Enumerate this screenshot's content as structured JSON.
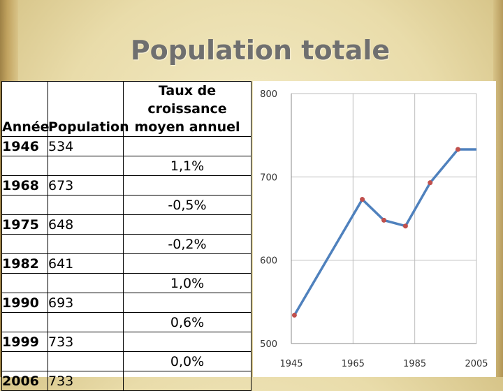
{
  "title": "Population totale",
  "table": {
    "headers": {
      "year": "Année",
      "population": "Population",
      "rate_line1": "Taux de croissance",
      "rate_line2": "moyen annuel"
    },
    "rows": [
      {
        "year": "1946",
        "population": "534"
      },
      {
        "year": "1968",
        "population": "673"
      },
      {
        "year": "1975",
        "population": "648"
      },
      {
        "year": "1982",
        "population": "641"
      },
      {
        "year": "1990",
        "population": "693"
      },
      {
        "year": "1999",
        "population": "733"
      },
      {
        "year": "2006",
        "population": "733"
      }
    ],
    "rates": [
      "1,1%",
      "-0,5%",
      "-0,2%",
      "1,0%",
      "0,6%",
      "0,0%"
    ]
  },
  "chart_data": {
    "type": "line",
    "x": [
      1946,
      1968,
      1975,
      1982,
      1990,
      1999,
      2006
    ],
    "y": [
      534,
      673,
      648,
      641,
      693,
      733,
      733
    ],
    "xlim": [
      1945,
      2005
    ],
    "ylim": [
      500,
      800
    ],
    "xticks": [
      "1945",
      "1965",
      "1985",
      "2005"
    ],
    "yticks": [
      "500",
      "600",
      "700",
      "800"
    ],
    "grid": true,
    "line_color": "#4f81bd",
    "marker_color": "#c0504d"
  }
}
